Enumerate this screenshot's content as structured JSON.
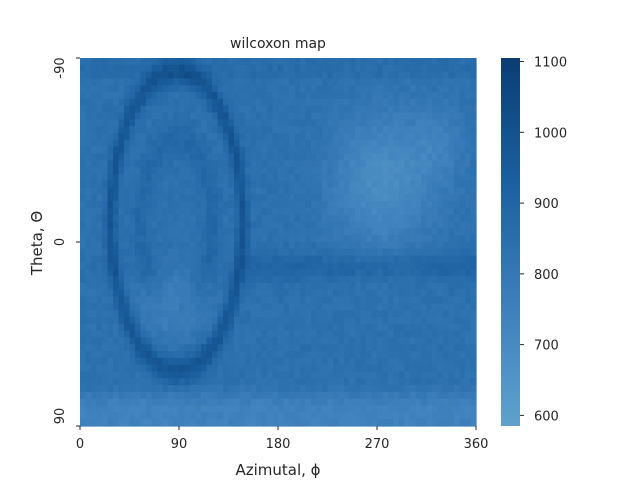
{
  "chart_data": {
    "type": "heatmap",
    "title": "wilcoxon map",
    "xlabel": "Azimutal, ϕ",
    "ylabel": "Theta, Θ",
    "x_ticks": [
      {
        "value": 0,
        "label": "0"
      },
      {
        "value": 90,
        "label": "90"
      },
      {
        "value": 180,
        "label": "180"
      },
      {
        "value": 270,
        "label": "270"
      },
      {
        "value": 360,
        "label": "360"
      }
    ],
    "y_ticks": [
      {
        "value": -90,
        "label": "-90"
      },
      {
        "value": 0,
        "label": "0"
      },
      {
        "value": 90,
        "label": "90"
      }
    ],
    "xlim": [
      0,
      360
    ],
    "ylim": [
      -90,
      90
    ],
    "colorbar": {
      "range": [
        585,
        1105
      ],
      "ticks": [
        600,
        700,
        800,
        900,
        1000,
        1100
      ],
      "colors": [
        "#5fa1cc",
        "#3c7fbb",
        "#1b5f9f",
        "#0a3e73"
      ]
    },
    "grid": false,
    "approximate_features": {
      "background_level": 835,
      "left_ring": {
        "center_phi": 88,
        "center_theta": -10,
        "radius_phi": 60,
        "radius_theta": 73,
        "level": 990
      },
      "left_inner_blob": {
        "center_phi": 85,
        "center_theta": 30,
        "level": 700
      },
      "right_bright_region": {
        "center_phi": 275,
        "center_theta": -30,
        "level": 700
      },
      "bottom_band": {
        "theta_from": 70,
        "level": 730
      }
    }
  }
}
